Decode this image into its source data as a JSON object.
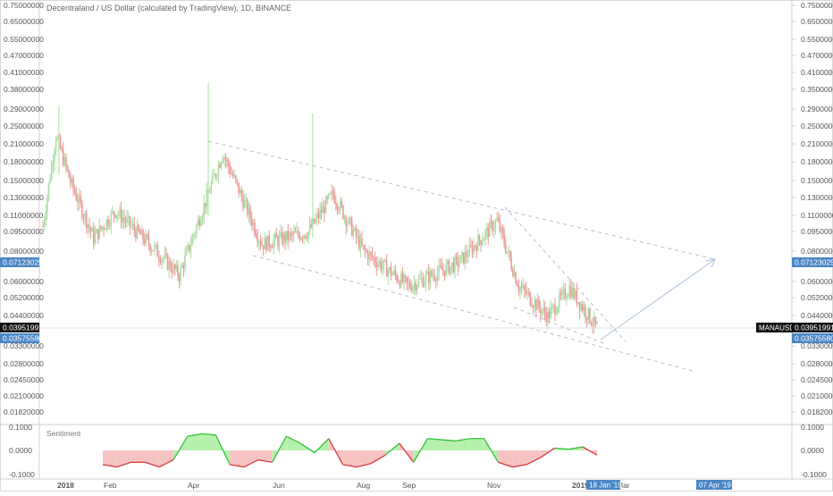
{
  "chart_title": "Decentraland / US Dollar (calculated by TradingView), 1D, BINANCE",
  "symbol_tag": "MANAUSD",
  "price_axis": {
    "ticks": [
      "0.75000000",
      "0.65000000",
      "0.55000000",
      "0.47000000",
      "0.41000000",
      "0.35000000",
      "0.29000000",
      "0.25000000",
      "0.21000000",
      "0.18000000",
      "0.15000000",
      "0.13000000",
      "0.11000000",
      "0.09500000",
      "0.08000000",
      "0.06000000",
      "0.05200000",
      "0.04400000",
      "0.03300000",
      "0.02800000",
      "0.02450000",
      "0.02100000",
      "0.01820000"
    ],
    "labels_right_extra": [
      "0.38000000"
    ],
    "left_first_diff": "0.38000000"
  },
  "price_tags": {
    "resistance": "0.07123025",
    "current": "0.03951991",
    "support": "0.03575580"
  },
  "sentiment": {
    "label": "Sentiment",
    "ticks": [
      "0.1000",
      "0.0000",
      "-0.1000"
    ]
  },
  "time_axis": {
    "labels": [
      "2018",
      "Feb",
      "Apr",
      "Jun",
      "Aug",
      "Sep",
      "Nov",
      "2019",
      "Mar"
    ],
    "cursor_date": "18 Jan '19",
    "target_date": "07 Apr '19"
  },
  "colors": {
    "up": "#a9dfa3",
    "down": "#eb9a9a",
    "trend": "#b8bcc4",
    "arrow": "#9fb8d8",
    "tag_blue": "#4a86c5",
    "tag_dark": "#111111"
  },
  "chart_data": {
    "type": "candlestick",
    "title": "Decentraland / US Dollar (calculated by TradingView), 1D, BINANCE",
    "x_range": [
      "2018-01-01",
      "2019-04-30"
    ],
    "y_scale": "log",
    "key_points": [
      {
        "date": "2018-01-01",
        "close": 0.1
      },
      {
        "date": "2018-01-10",
        "close": 0.23
      },
      {
        "date": "2018-01-20",
        "close": 0.15
      },
      {
        "date": "2018-02-05",
        "close": 0.09
      },
      {
        "date": "2018-02-20",
        "close": 0.115
      },
      {
        "date": "2018-03-20",
        "close": 0.08
      },
      {
        "date": "2018-04-05",
        "close": 0.064
      },
      {
        "date": "2018-04-25",
        "close": 0.135
      },
      {
        "date": "2018-05-05",
        "close": 0.195
      },
      {
        "date": "2018-06-01",
        "close": 0.085
      },
      {
        "date": "2018-07-03",
        "close": 0.095
      },
      {
        "date": "2018-07-20",
        "close": 0.135
      },
      {
        "date": "2018-08-10",
        "close": 0.08
      },
      {
        "date": "2018-09-10",
        "close": 0.058
      },
      {
        "date": "2018-10-15",
        "close": 0.072
      },
      {
        "date": "2018-11-10",
        "close": 0.105
      },
      {
        "date": "2018-11-25",
        "close": 0.058
      },
      {
        "date": "2018-12-15",
        "close": 0.044
      },
      {
        "date": "2018-12-30",
        "close": 0.057
      },
      {
        "date": "2019-01-18",
        "close": 0.0395
      }
    ],
    "sentiment_series": {
      "name": "Sentiment",
      "values": [
        -0.06,
        -0.07,
        -0.05,
        -0.05,
        -0.07,
        -0.04,
        0.06,
        0.07,
        0.065,
        -0.06,
        -0.07,
        -0.04,
        -0.05,
        0.06,
        0.03,
        -0.01,
        0.05,
        -0.06,
        -0.07,
        -0.055,
        -0.02,
        0.03,
        -0.05,
        0.05,
        0.045,
        0.04,
        0.05,
        0.05,
        -0.05,
        -0.07,
        -0.06,
        -0.03,
        0.01,
        0.005,
        0.015,
        -0.02
      ]
    }
  }
}
